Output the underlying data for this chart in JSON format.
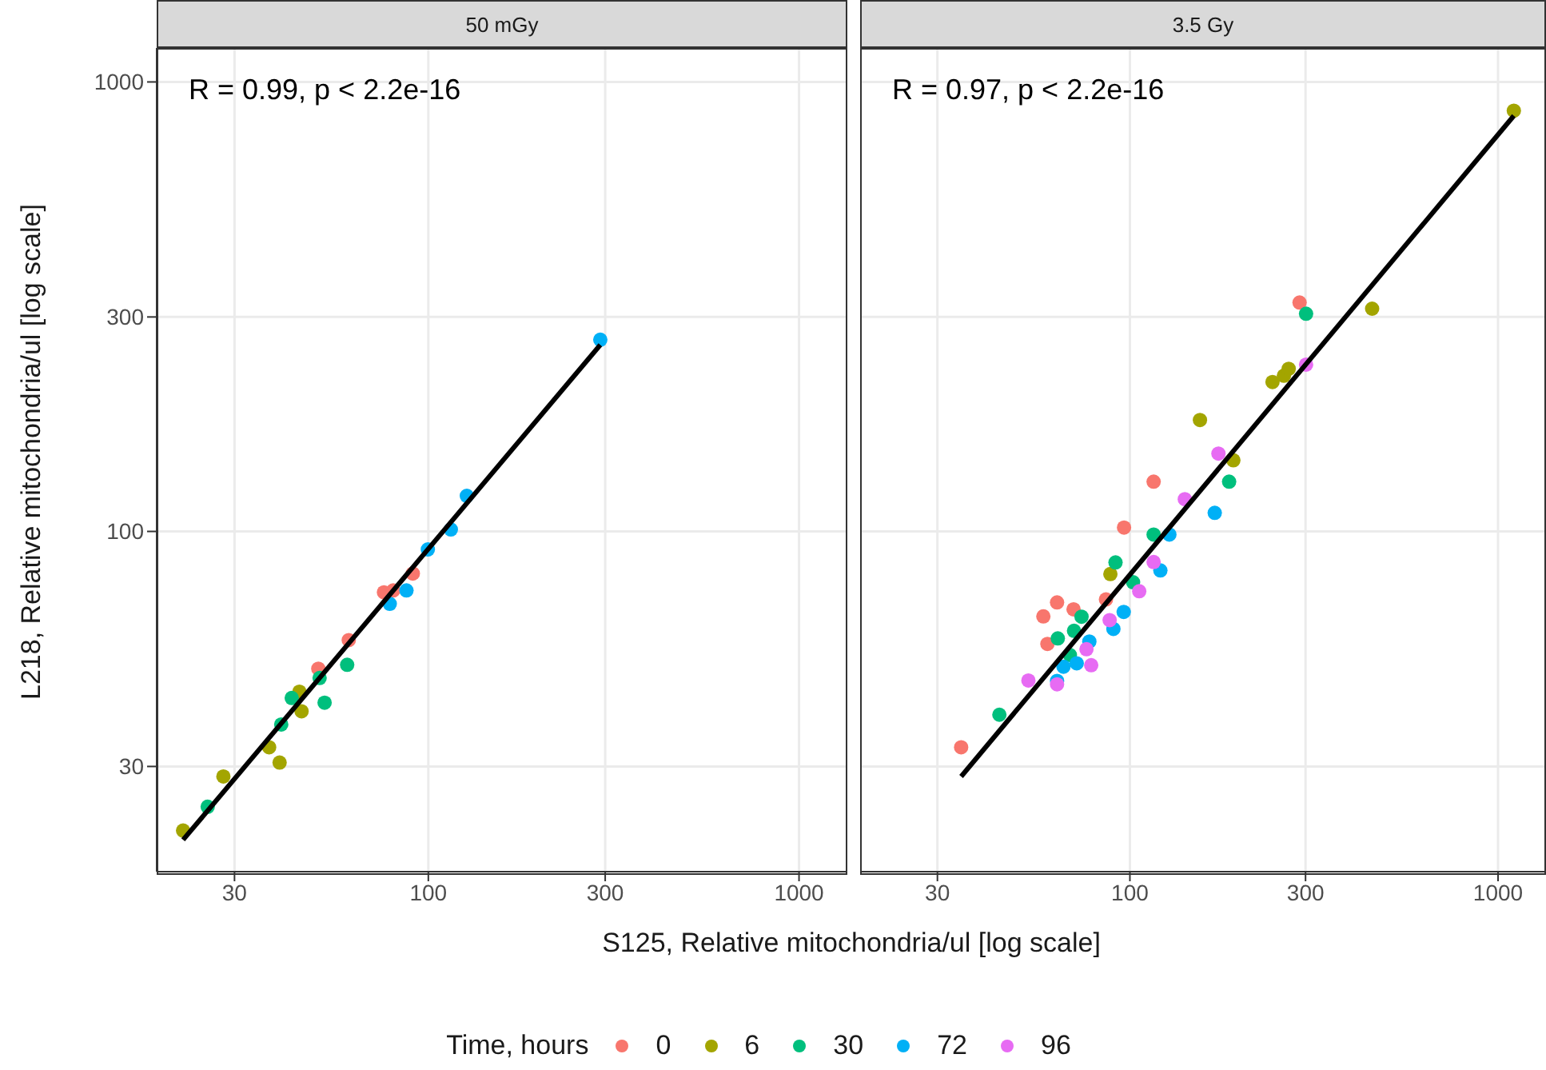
{
  "chart_data": [
    {
      "type": "scatter",
      "title": "50 mGy",
      "xlabel": "S125, Relative mitochondria/ul [log scale]",
      "ylabel": "L218, Relative mitochondria/ul [log scale]",
      "legend_title": "Time, hours",
      "legend": "bottom",
      "log": "xy",
      "grid": true,
      "marker": "circle",
      "xlim": [
        18.5,
        1350
      ],
      "ylim": [
        17.5,
        1190
      ],
      "xticks": [
        30,
        100,
        300,
        1000
      ],
      "yticks": [
        30,
        100,
        300,
        1000
      ],
      "annotations": [
        "R = 0.99, p < 2.2e-16"
      ],
      "series": [
        {
          "name": "0",
          "color": "#f8766d",
          "x": [
            50.5,
            61.0,
            75.9,
            80.4,
            90.8
          ],
          "values": [
            49.5,
            57.3,
            73.2,
            73.9,
            80.6
          ]
        },
        {
          "name": "6",
          "color": "#a3a500",
          "x": [
            21.8,
            28.0,
            39.7,
            37.2,
            45.5,
            44.9
          ],
          "values": [
            21.6,
            28.5,
            30.6,
            33.1,
            39.8,
            44.0
          ]
        },
        {
          "name": "30",
          "color": "#00bf7d",
          "x": [
            25.4,
            40.1,
            52.5,
            42.8,
            50.9,
            60.4
          ],
          "values": [
            24.4,
            37.2,
            41.6,
            42.6,
            47.2,
            50.5
          ]
        },
        {
          "name": "72",
          "color": "#00b0f6",
          "x": [
            78.7,
            87.3,
            99.7,
            115,
            127,
            291
          ],
          "values": [
            69.0,
            73.9,
            91.2,
            101,
            120,
            267
          ]
        },
        {
          "type": "line",
          "marker": "none",
          "color": "#000000",
          "x": [
            21.8,
            291
          ],
          "values": [
            20.6,
            260
          ]
        }
      ]
    },
    {
      "type": "scatter",
      "title": "3.5 Gy",
      "log": "xy",
      "grid": true,
      "marker": "circle",
      "tick_labels": "x",
      "xlim": [
        18.5,
        1350
      ],
      "ylim": [
        17.5,
        1190
      ],
      "xticks": [
        30,
        100,
        300,
        1000
      ],
      "yticks": [
        30,
        100,
        300,
        1000
      ],
      "annotations": [
        "R = 0.97, p < 2.2e-16"
      ],
      "series": [
        {
          "name": "0",
          "color": "#f8766d",
          "x": [
            34.8,
            59.7,
            58.2,
            63.4,
            70.3,
            86.1,
            96.4,
            116,
            289
          ],
          "values": [
            33.1,
            56.2,
            64.7,
            69.5,
            67.1,
            70.6,
            102,
            129,
            323
          ]
        },
        {
          "name": "6",
          "color": "#a3a500",
          "x": [
            88.5,
            191,
            155,
            244,
            262,
            270,
            455,
            1104
          ],
          "values": [
            80.4,
            144,
            177,
            215,
            222,
            230,
            313,
            863
          ]
        },
        {
          "name": "30",
          "color": "#00bf7d",
          "x": [
            44.2,
            68.7,
            63.7,
            70.5,
            73.9,
            91.4,
            102,
            116,
            186,
            301
          ],
          "values": [
            39.1,
            53.1,
            57.8,
            60.1,
            64.6,
            85.3,
            77.1,
            98.4,
            129,
            305
          ]
        },
        {
          "name": "72",
          "color": "#00b0f6",
          "x": [
            63.4,
            66.0,
            71.7,
            77.6,
            90.2,
            96.2,
            121,
            128,
            170
          ],
          "values": [
            46.5,
            50.0,
            50.9,
            56.9,
            60.7,
            66.2,
            81.9,
            98.4,
            110
          ]
        },
        {
          "name": "96",
          "color": "#e76bf3",
          "x": [
            53.0,
            63.4,
            78.5,
            76.2,
            88.1,
            106,
            116,
            141,
            174,
            301
          ],
          "values": [
            46.6,
            45.7,
            50.4,
            54.7,
            63.5,
            73.6,
            85.5,
            118,
            149,
            235
          ]
        },
        {
          "type": "line",
          "marker": "none",
          "color": "#000000",
          "x": [
            34.8,
            1104
          ],
          "values": [
            28.5,
            841
          ]
        }
      ]
    }
  ]
}
